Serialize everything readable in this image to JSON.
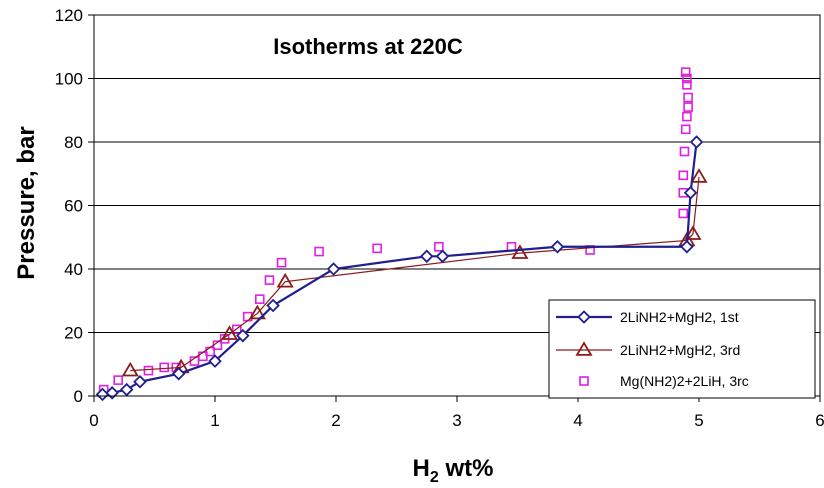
{
  "chart_data": {
    "type": "scatter",
    "title": "Isotherms at 220C",
    "xlabel": {
      "main": "H",
      "sub": "2",
      "rest": " wt%"
    },
    "ylabel": "Pressure, bar",
    "xlim": [
      0,
      6
    ],
    "ylim": [
      0,
      120
    ],
    "xticks": [
      0,
      1,
      2,
      3,
      4,
      5,
      6
    ],
    "yticks": [
      0,
      20,
      40,
      60,
      80,
      100,
      120
    ],
    "grid": "horizontal",
    "legend_position": "bottom-right",
    "series": [
      {
        "name": "2LiNH2+MgH2, 1st",
        "marker": "diamond",
        "color": "#1f1f8f",
        "line": true,
        "line_width": 2.2,
        "points": [
          [
            0.07,
            0.5
          ],
          [
            0.15,
            1.0
          ],
          [
            0.27,
            2.0
          ],
          [
            0.38,
            4.5
          ],
          [
            0.7,
            7.0
          ],
          [
            1.0,
            11.0
          ],
          [
            1.23,
            19.0
          ],
          [
            1.48,
            28.5
          ],
          [
            1.98,
            40.0
          ],
          [
            2.75,
            44.0
          ],
          [
            2.88,
            44.0
          ],
          [
            3.83,
            47.0
          ],
          [
            4.9,
            47.0
          ],
          [
            4.93,
            64.0
          ],
          [
            4.98,
            80.0
          ]
        ]
      },
      {
        "name": "2LiNH2+MgH2, 3rd",
        "marker": "triangle",
        "color": "#8b1a1a",
        "line": true,
        "line_width": 1.2,
        "points": [
          [
            0.3,
            8.0
          ],
          [
            0.72,
            9.0
          ],
          [
            1.12,
            19.5
          ],
          [
            1.35,
            26.0
          ],
          [
            1.58,
            36.0
          ],
          [
            3.52,
            45.0
          ],
          [
            4.9,
            49.0
          ],
          [
            4.95,
            51.0
          ],
          [
            5.0,
            69.0
          ]
        ]
      },
      {
        "name": "Mg(NH2)2+2LiH, 3rc",
        "marker": "square",
        "color": "#e020e0",
        "line": false,
        "points": [
          [
            0.08,
            2.0
          ],
          [
            0.2,
            5.0
          ],
          [
            0.45,
            8.0
          ],
          [
            0.58,
            9.0
          ],
          [
            0.68,
            9.0
          ],
          [
            0.83,
            11.0
          ],
          [
            0.9,
            12.5
          ],
          [
            0.96,
            14.0
          ],
          [
            1.02,
            16.0
          ],
          [
            1.08,
            18.0
          ],
          [
            1.18,
            21.0
          ],
          [
            1.27,
            25.0
          ],
          [
            1.37,
            30.5
          ],
          [
            1.45,
            36.5
          ],
          [
            1.55,
            42.0
          ],
          [
            1.86,
            45.5
          ],
          [
            2.34,
            46.5
          ],
          [
            2.85,
            47.0
          ],
          [
            3.45,
            47.0
          ],
          [
            4.1,
            46.0
          ],
          [
            4.87,
            57.5
          ],
          [
            4.87,
            64.0
          ],
          [
            4.87,
            69.5
          ],
          [
            4.88,
            77.0
          ],
          [
            4.89,
            84.0
          ],
          [
            4.9,
            88.0
          ],
          [
            4.91,
            91.0
          ],
          [
            4.91,
            94.0
          ],
          [
            4.9,
            98.0
          ],
          [
            4.9,
            100.0
          ],
          [
            4.89,
            102.0
          ]
        ]
      }
    ]
  }
}
